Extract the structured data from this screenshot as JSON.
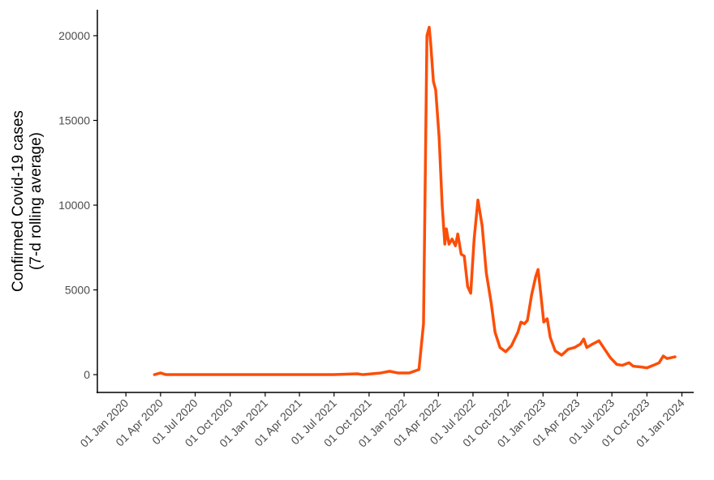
{
  "chart_data": {
    "type": "line",
    "y_label": [
      "Confirmed Covid-19 cases",
      "(7-d rolling average)"
    ],
    "x": [
      "2020-03-16",
      "2020-04-01",
      "2020-04-15",
      "2020-07-01",
      "2021-01-01",
      "2021-07-01",
      "2021-08-31",
      "2021-09-15",
      "2021-11-01",
      "2021-11-24",
      "2021-12-15",
      "2022-01-15",
      "2022-02-09",
      "2022-02-21",
      "2022-03-02",
      "2022-03-08",
      "2022-03-12",
      "2022-03-19",
      "2022-03-25",
      "2022-04-03",
      "2022-04-11",
      "2022-04-18",
      "2022-04-22",
      "2022-04-29",
      "2022-05-07",
      "2022-05-16",
      "2022-05-22",
      "2022-05-31",
      "2022-06-08",
      "2022-06-17",
      "2022-06-25",
      "2022-07-04",
      "2022-07-14",
      "2022-07-25",
      "2022-08-05",
      "2022-08-18",
      "2022-08-28",
      "2022-09-10",
      "2022-09-25",
      "2022-10-10",
      "2022-10-27",
      "2022-11-04",
      "2022-11-13",
      "2022-11-21",
      "2022-12-02",
      "2022-12-13",
      "2022-12-19",
      "2022-12-26",
      "2023-01-03",
      "2023-01-12",
      "2023-01-20",
      "2023-02-02",
      "2023-02-19",
      "2023-03-08",
      "2023-03-25",
      "2023-04-09",
      "2023-04-18",
      "2023-04-26",
      "2023-05-11",
      "2023-05-28",
      "2023-06-12",
      "2023-06-27",
      "2023-07-14",
      "2023-07-29",
      "2023-08-15",
      "2023-08-26",
      "2023-09-16",
      "2023-10-01",
      "2023-10-18",
      "2023-11-02",
      "2023-11-13",
      "2023-11-23",
      "2023-12-14"
    ],
    "series": [
      {
        "color": "#fc4e08",
        "values": [
          0,
          100,
          0,
          0,
          0,
          0,
          50,
          0,
          100,
          200,
          100,
          100,
          300,
          3000,
          20000,
          20500,
          19500,
          17300,
          16800,
          14000,
          10000,
          7700,
          8600,
          7700,
          8000,
          7600,
          8300,
          7100,
          7000,
          5200,
          4800,
          8000,
          10300,
          8800,
          6000,
          4200,
          2500,
          1600,
          1350,
          1700,
          2500,
          3100,
          3000,
          3200,
          4700,
          5800,
          6200,
          4800,
          3100,
          3300,
          2200,
          1400,
          1150,
          1500,
          1600,
          1800,
          2100,
          1600,
          1800,
          2000,
          1500,
          1000,
          600,
          550,
          700,
          500,
          450,
          400,
          550,
          700,
          1100,
          950,
          1050
        ]
      }
    ],
    "xlim": [
      "2019-10-18",
      "2024-02-01"
    ],
    "xticks": [
      {
        "value": "2020-01-01",
        "label": "01 Jan 2020"
      },
      {
        "value": "2020-04-01",
        "label": "01 Apr 2020"
      },
      {
        "value": "2020-07-01",
        "label": "01 Jul 2020"
      },
      {
        "value": "2020-10-01",
        "label": "01 Oct 2020"
      },
      {
        "value": "2021-01-01",
        "label": "01 Jan 2021"
      },
      {
        "value": "2021-04-01",
        "label": "01 Apr 2021"
      },
      {
        "value": "2021-07-01",
        "label": "01 Jul 2021"
      },
      {
        "value": "2021-10-01",
        "label": "01 Oct 2021"
      },
      {
        "value": "2022-01-01",
        "label": "01 Jan 2022"
      },
      {
        "value": "2022-04-01",
        "label": "01 Apr 2022"
      },
      {
        "value": "2022-07-01",
        "label": "01 Jul 2022"
      },
      {
        "value": "2022-10-01",
        "label": "01 Oct 2022"
      },
      {
        "value": "2023-01-01",
        "label": "01 Jan 2023"
      },
      {
        "value": "2023-04-01",
        "label": "01 Apr 2023"
      },
      {
        "value": "2023-07-01",
        "label": "01 Jul 2023"
      },
      {
        "value": "2023-10-01",
        "label": "01 Oct 2023"
      },
      {
        "value": "2024-01-01",
        "label": "01 Jan 2024"
      }
    ],
    "ylim": [
      -1050,
      21530
    ],
    "yticks": [
      0,
      5000,
      10000,
      15000,
      20000
    ],
    "grid": false
  }
}
